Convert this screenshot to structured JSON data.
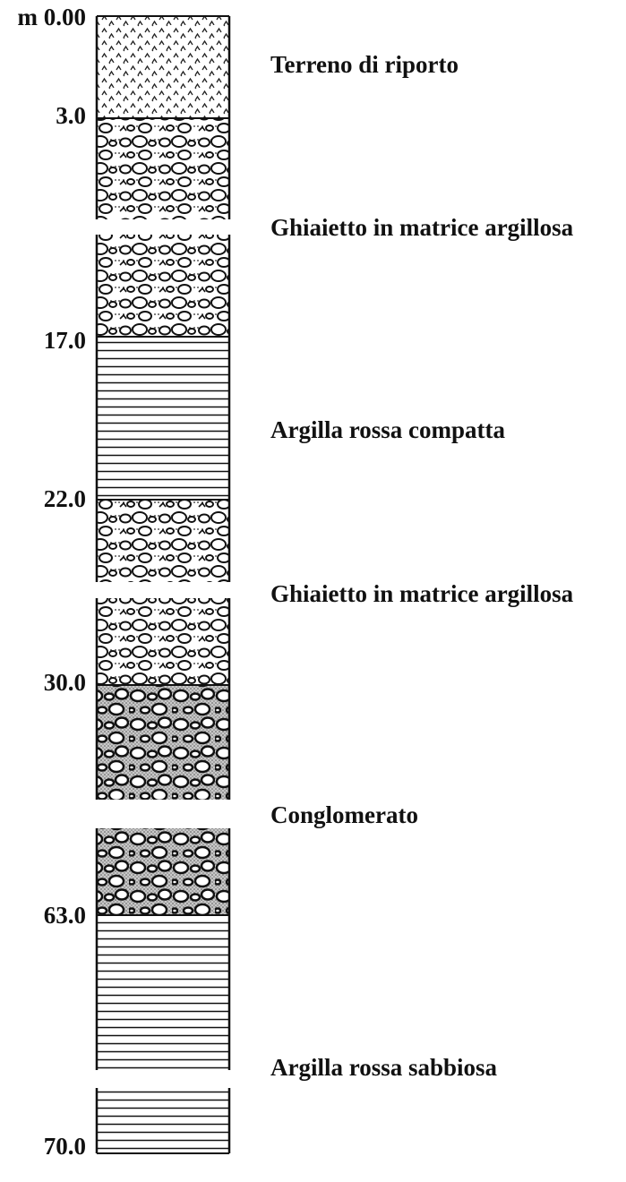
{
  "depths": [
    "m 0.00",
    "3.0",
    "17.0",
    "22.0",
    "30.0",
    "63.0",
    "70.0"
  ],
  "layers": [
    "Terreno di riporto",
    "Ghiaietto in matrice argillosa",
    "Argilla rossa compatta",
    "Ghiaietto in matrice argillosa",
    "Conglomerato",
    "Argilla rossa sabbiosa"
  ]
}
